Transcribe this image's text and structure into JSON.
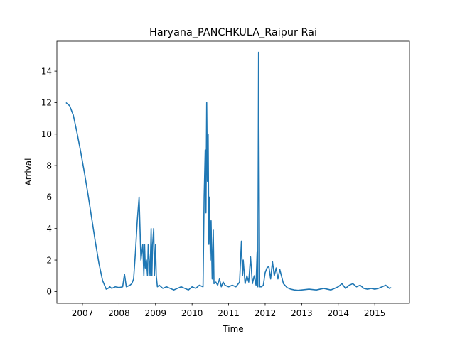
{
  "chart_data": {
    "type": "line",
    "title": "Haryana_PANCHKULA_Raipur Rai",
    "xlabel": "Time",
    "ylabel": "Arrival",
    "x_ticks": [
      "2007",
      "2008",
      "2009",
      "2010",
      "2011",
      "2012",
      "2013",
      "2014",
      "2015"
    ],
    "y_ticks": [
      "0",
      "2",
      "4",
      "6",
      "8",
      "10",
      "12",
      "14"
    ],
    "xlim": [
      2006.3,
      2015.95
    ],
    "ylim": [
      -0.75,
      15.9
    ],
    "grid": false,
    "legend": "none",
    "series": [
      {
        "color": "#1f77b4",
        "x": [
          2006.55,
          2006.65,
          2006.75,
          2006.85,
          2006.95,
          2007.05,
          2007.15,
          2007.25,
          2007.35,
          2007.45,
          2007.55,
          2007.65,
          2007.7,
          2007.75,
          2007.8,
          2007.9,
          2008.0,
          2008.1,
          2008.15,
          2008.2,
          2008.3,
          2008.35,
          2008.4,
          2008.45,
          2008.5,
          2008.55,
          2008.6,
          2008.65,
          2008.68,
          2008.7,
          2008.72,
          2008.75,
          2008.78,
          2008.8,
          2008.85,
          2008.88,
          2008.9,
          2008.92,
          2008.95,
          2008.97,
          2009.0,
          2009.02,
          2009.05,
          2009.1,
          2009.2,
          2009.3,
          2009.4,
          2009.5,
          2009.6,
          2009.7,
          2009.8,
          2009.9,
          2010.0,
          2010.1,
          2010.2,
          2010.3,
          2010.33,
          2010.36,
          2010.38,
          2010.4,
          2010.42,
          2010.44,
          2010.46,
          2010.48,
          2010.5,
          2010.52,
          2010.55,
          2010.58,
          2010.6,
          2010.65,
          2010.7,
          2010.75,
          2010.8,
          2010.85,
          2010.9,
          2011.0,
          2011.1,
          2011.2,
          2011.3,
          2011.35,
          2011.38,
          2011.4,
          2011.45,
          2011.5,
          2011.55,
          2011.6,
          2011.65,
          2011.7,
          2011.75,
          2011.78,
          2011.8,
          2011.82,
          2011.85,
          2011.9,
          2011.95,
          2012.0,
          2012.05,
          2012.1,
          2012.15,
          2012.2,
          2012.25,
          2012.3,
          2012.35,
          2012.4,
          2012.5,
          2012.6,
          2012.7,
          2012.8,
          2012.9,
          2013.0,
          2013.2,
          2013.4,
          2013.6,
          2013.8,
          2014.0,
          2014.1,
          2014.2,
          2014.3,
          2014.4,
          2014.5,
          2014.6,
          2014.7,
          2014.8,
          2014.9,
          2015.0,
          2015.1,
          2015.2,
          2015.3,
          2015.4,
          2015.45
        ],
        "y": [
          12.0,
          11.8,
          11.2,
          10.1,
          8.9,
          7.6,
          6.2,
          4.7,
          3.2,
          1.8,
          0.7,
          0.15,
          0.2,
          0.3,
          0.2,
          0.3,
          0.25,
          0.3,
          1.1,
          0.3,
          0.4,
          0.5,
          0.8,
          2.5,
          4.5,
          6.0,
          2.0,
          3.0,
          1.0,
          3.0,
          1.5,
          2.0,
          1.0,
          3.0,
          1.0,
          4.0,
          1.0,
          3.0,
          4.0,
          1.0,
          3.0,
          1.0,
          0.3,
          0.4,
          0.2,
          0.3,
          0.2,
          0.1,
          0.2,
          0.3,
          0.2,
          0.1,
          0.3,
          0.2,
          0.4,
          0.3,
          6.0,
          9.0,
          5.0,
          12.0,
          7.0,
          10.0,
          3.0,
          6.0,
          2.0,
          4.5,
          0.8,
          3.9,
          0.5,
          0.6,
          0.4,
          0.8,
          0.3,
          0.6,
          0.4,
          0.3,
          0.4,
          0.3,
          0.6,
          3.2,
          1.0,
          2.0,
          0.5,
          1.0,
          0.6,
          2.2,
          0.5,
          1.0,
          0.4,
          2.5,
          0.3,
          15.2,
          0.3,
          0.3,
          0.4,
          1.2,
          1.5,
          1.6,
          0.8,
          1.9,
          1.0,
          1.5,
          0.8,
          1.4,
          0.5,
          0.25,
          0.15,
          0.1,
          0.08,
          0.1,
          0.15,
          0.1,
          0.2,
          0.1,
          0.3,
          0.5,
          0.2,
          0.4,
          0.5,
          0.3,
          0.4,
          0.2,
          0.15,
          0.2,
          0.15,
          0.2,
          0.3,
          0.4,
          0.2,
          0.25
        ]
      }
    ]
  }
}
